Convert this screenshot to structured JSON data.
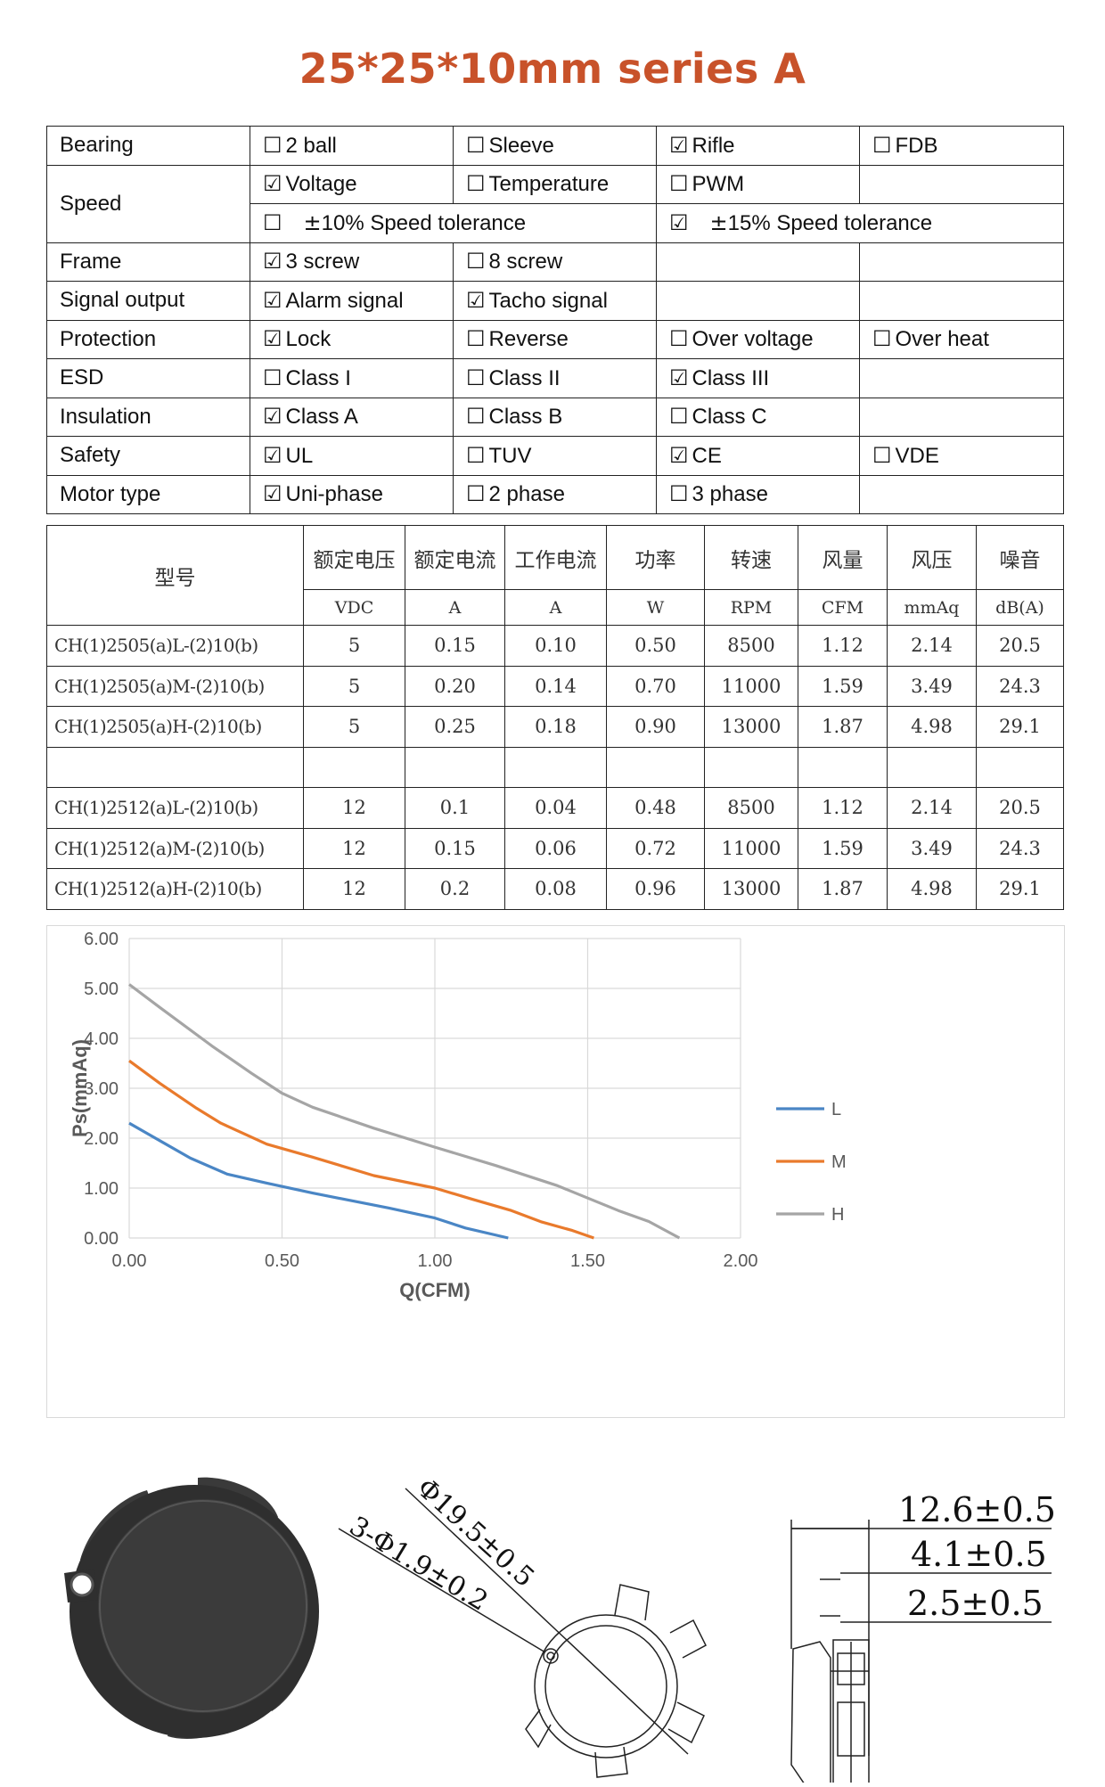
{
  "title": "25*25*10mm series A",
  "features": [
    {
      "label": "Bearing",
      "cells": [
        {
          "text": "2 ball",
          "checked": false
        },
        {
          "text": "Sleeve",
          "checked": false
        },
        {
          "text": "Rifle",
          "checked": true
        },
        {
          "text": "FDB",
          "checked": false
        }
      ]
    },
    {
      "label": "Speed",
      "cells": [
        {
          "text": "Voltage",
          "checked": true
        },
        {
          "text": "Temperature",
          "checked": false
        },
        {
          "text": "PWM",
          "checked": false
        },
        null
      ]
    },
    {
      "label": "",
      "cells": [
        {
          "text": "10% Speed tolerance",
          "checked": false
        },
        {
          "text": "15% Speed tolerance",
          "checked": true
        }
      ]
    },
    {
      "label": "Frame",
      "cells": [
        {
          "text": "3 screw",
          "checked": true
        },
        {
          "text": "8 screw",
          "checked": false
        },
        null,
        null
      ]
    },
    {
      "label": "Signal output",
      "cells": [
        {
          "text": "Alarm signal",
          "checked": true
        },
        {
          "text": "Tacho signal",
          "checked": true
        },
        null,
        null
      ]
    },
    {
      "label": "Protection",
      "cells": [
        {
          "text": "Lock",
          "checked": true
        },
        {
          "text": "Reverse",
          "checked": false
        },
        {
          "text": "Over voltage",
          "checked": false
        },
        {
          "text": "Over heat",
          "checked": false
        }
      ]
    },
    {
      "label": "ESD",
      "cells": [
        {
          "text": "Class I",
          "checked": false
        },
        {
          "text": "Class II",
          "checked": false
        },
        {
          "text": "Class III",
          "checked": true
        },
        null
      ]
    },
    {
      "label": "Insulation",
      "cells": [
        {
          "text": "Class A",
          "checked": true
        },
        {
          "text": "Class B",
          "checked": false
        },
        {
          "text": "Class C",
          "checked": false
        },
        null
      ]
    },
    {
      "label": "Safety",
      "cells": [
        {
          "text": "UL",
          "checked": true
        },
        {
          "text": "TUV",
          "checked": false
        },
        {
          "text": "CE",
          "checked": true
        },
        {
          "text": "VDE",
          "checked": false
        }
      ]
    },
    {
      "label": "Motor type",
      "cells": [
        {
          "text": "Uni-phase",
          "checked": true
        },
        {
          "text": "2 phase",
          "checked": false
        },
        {
          "text": "3 phase",
          "checked": false
        },
        null
      ]
    }
  ],
  "symbols": {
    "checked": "☑",
    "unchecked": "☐",
    "plusminus": "±"
  },
  "specs": {
    "model_header": "型号",
    "headers": [
      "额定电压",
      "额定电流",
      "工作电流",
      "功率",
      "转速",
      "风量",
      "风压",
      "噪音"
    ],
    "units": [
      "VDC",
      "A",
      "A",
      "W",
      "RPM",
      "CFM",
      "mmAq",
      "dB(A)"
    ],
    "rows": [
      [
        "CH(1)2505(a)L-(2)10(b)",
        "5",
        "0.15",
        "0.10",
        "0.50",
        "8500",
        "1.12",
        "2.14",
        "20.5"
      ],
      [
        "CH(1)2505(a)M-(2)10(b)",
        "5",
        "0.20",
        "0.14",
        "0.70",
        "11000",
        "1.59",
        "3.49",
        "24.3"
      ],
      [
        "CH(1)2505(a)H-(2)10(b)",
        "5",
        "0.25",
        "0.18",
        "0.90",
        "13000",
        "1.87",
        "4.98",
        "29.1"
      ],
      [
        "",
        "",
        "",
        "",
        "",
        "",
        "",
        "",
        ""
      ],
      [
        "CH(1)2512(a)L-(2)10(b)",
        "12",
        "0.1",
        "0.04",
        "0.48",
        "8500",
        "1.12",
        "2.14",
        "20.5"
      ],
      [
        "CH(1)2512(a)M-(2)10(b)",
        "12",
        "0.15",
        "0.06",
        "0.72",
        "11000",
        "1.59",
        "3.49",
        "24.3"
      ],
      [
        "CH(1)2512(a)H-(2)10(b)",
        "12",
        "0.2",
        "0.08",
        "0.96",
        "13000",
        "1.87",
        "4.98",
        "29.1"
      ]
    ]
  },
  "chart_data": {
    "type": "line",
    "xlabel": "Q(CFM)",
    "ylabel": "Ps(mmAq)",
    "xlim": [
      0,
      2
    ],
    "ylim": [
      0,
      6
    ],
    "xticks": [
      "0.00",
      "0.50",
      "1.00",
      "1.50",
      "2.00"
    ],
    "yticks": [
      "0.00",
      "1.00",
      "2.00",
      "3.00",
      "4.00",
      "5.00",
      "6.00"
    ],
    "grid": true,
    "legend": "right",
    "series": [
      {
        "name": "L",
        "color": "#4a86c5",
        "points": [
          [
            0,
            2.3
          ],
          [
            0.1,
            1.95
          ],
          [
            0.2,
            1.6
          ],
          [
            0.32,
            1.28
          ],
          [
            0.45,
            1.1
          ],
          [
            0.6,
            0.9
          ],
          [
            0.75,
            0.72
          ],
          [
            0.85,
            0.6
          ],
          [
            1.0,
            0.4
          ],
          [
            1.1,
            0.2
          ],
          [
            1.24,
            0
          ]
        ]
      },
      {
        "name": "M",
        "color": "#e97a2c",
        "points": [
          [
            0,
            3.55
          ],
          [
            0.1,
            3.1
          ],
          [
            0.22,
            2.6
          ],
          [
            0.3,
            2.3
          ],
          [
            0.45,
            1.88
          ],
          [
            0.6,
            1.62
          ],
          [
            0.8,
            1.25
          ],
          [
            1.0,
            1.0
          ],
          [
            1.12,
            0.78
          ],
          [
            1.25,
            0.55
          ],
          [
            1.35,
            0.32
          ],
          [
            1.45,
            0.15
          ],
          [
            1.52,
            0
          ]
        ]
      },
      {
        "name": "H",
        "color": "#a5a5a5",
        "points": [
          [
            0,
            5.08
          ],
          [
            0.1,
            4.62
          ],
          [
            0.27,
            3.85
          ],
          [
            0.4,
            3.3
          ],
          [
            0.5,
            2.9
          ],
          [
            0.6,
            2.62
          ],
          [
            0.8,
            2.2
          ],
          [
            1.0,
            1.82
          ],
          [
            1.2,
            1.45
          ],
          [
            1.4,
            1.05
          ],
          [
            1.5,
            0.8
          ],
          [
            1.6,
            0.55
          ],
          [
            1.7,
            0.33
          ],
          [
            1.8,
            0
          ]
        ]
      }
    ]
  },
  "dimensions": {
    "dia_main": "Φ19.5±0.5",
    "dia_holes": "3-Φ1.9±0.2",
    "dim1": "12.6±0.5",
    "dim2": "4.1±0.5",
    "dim3": "2.5±0.5"
  }
}
